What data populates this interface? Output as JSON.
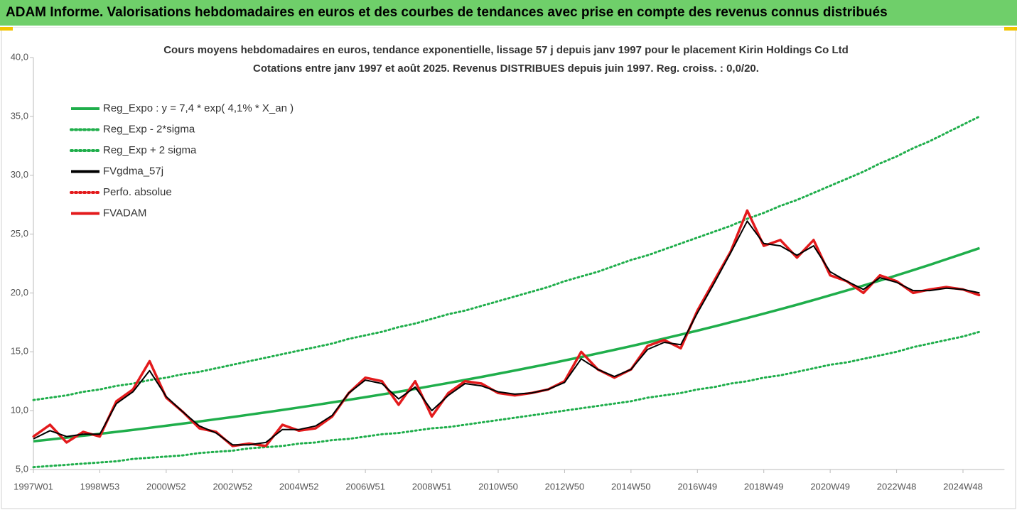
{
  "header": {
    "title": "ADAM Informe. Valorisations hebdomadaires en euros et des courbes de tendances avec prise en compte des revenus connus distribués"
  },
  "chart_data": {
    "type": "line",
    "title": "Cours moyens hebdomadaires en euros, tendance exponentielle, lissage 57 j depuis janv 1997  pour le placement Kirin Holdings Co Ltd",
    "subtitle": "Cotations entre janv 1997 et août 2025. Revenus DISTRIBUES depuis juin 1997. Reg. croiss. : 0,0/20.",
    "categories": [
      "1997W01",
      null,
      null,
      null,
      "1998W53",
      null,
      null,
      null,
      "2000W52",
      null,
      null,
      null,
      "2002W52",
      null,
      null,
      null,
      "2004W52",
      null,
      null,
      null,
      "2006W51",
      null,
      null,
      null,
      "2008W51",
      null,
      null,
      null,
      "2010W50",
      null,
      null,
      null,
      "2012W50",
      null,
      null,
      null,
      "2014W50",
      null,
      null,
      null,
      "2016W49",
      null,
      null,
      null,
      "2018W49",
      null,
      null,
      null,
      "2020W49",
      null,
      null,
      null,
      "2022W48",
      null,
      null,
      null,
      "2024W48",
      null
    ],
    "ylim": [
      5,
      40
    ],
    "yticks": [
      {
        "value": 5,
        "label": "5,0"
      },
      {
        "value": 10,
        "label": "10,0"
      },
      {
        "value": 15,
        "label": "15,0"
      },
      {
        "value": 20,
        "label": "20,0"
      },
      {
        "value": 25,
        "label": "25,0"
      },
      {
        "value": 30,
        "label": "30,0"
      },
      {
        "value": 35,
        "label": "35,0"
      },
      {
        "value": 40,
        "label": "40,0"
      }
    ],
    "grid": false,
    "legend": "top-left",
    "series": [
      {
        "name": "Reg_Expo : y = 7,4 * exp( 4,1% *  X_an )",
        "color": "#1fae4b",
        "style": "solid",
        "values": [
          7.4,
          7.55,
          7.71,
          7.87,
          8.03,
          8.2,
          8.37,
          8.54,
          8.72,
          8.9,
          9.08,
          9.27,
          9.46,
          9.66,
          9.86,
          10.06,
          10.27,
          10.48,
          10.7,
          10.92,
          11.15,
          11.38,
          11.61,
          11.85,
          12.1,
          12.35,
          12.61,
          12.87,
          13.14,
          13.41,
          13.69,
          13.97,
          14.26,
          14.56,
          14.86,
          15.17,
          15.48,
          15.8,
          16.13,
          16.46,
          16.8,
          17.15,
          17.51,
          17.87,
          18.24,
          18.62,
          19.0,
          19.4,
          19.8,
          20.21,
          20.63,
          21.06,
          21.49,
          21.94,
          22.39,
          22.86,
          23.33,
          23.81
        ]
      },
      {
        "name": "Reg_Exp - 2*sigma",
        "color": "#1fae4b",
        "style": "dotted",
        "values": [
          5.2,
          5.3,
          5.4,
          5.5,
          5.6,
          5.7,
          5.9,
          6.0,
          6.1,
          6.2,
          6.4,
          6.5,
          6.6,
          6.8,
          6.9,
          7.0,
          7.2,
          7.3,
          7.5,
          7.6,
          7.8,
          8.0,
          8.1,
          8.3,
          8.5,
          8.6,
          8.8,
          9.0,
          9.2,
          9.4,
          9.6,
          9.8,
          10.0,
          10.2,
          10.4,
          10.6,
          10.8,
          11.1,
          11.3,
          11.5,
          11.8,
          12.0,
          12.3,
          12.5,
          12.8,
          13.0,
          13.3,
          13.6,
          13.9,
          14.1,
          14.4,
          14.7,
          15.0,
          15.4,
          15.7,
          16.0,
          16.3,
          16.7
        ]
      },
      {
        "name": "Reg_Exp + 2 sigma",
        "color": "#1fae4b",
        "style": "dotted",
        "values": [
          10.9,
          11.1,
          11.3,
          11.6,
          11.8,
          12.1,
          12.3,
          12.6,
          12.8,
          13.1,
          13.3,
          13.6,
          13.9,
          14.2,
          14.5,
          14.8,
          15.1,
          15.4,
          15.7,
          16.1,
          16.4,
          16.7,
          17.1,
          17.4,
          17.8,
          18.2,
          18.5,
          18.9,
          19.3,
          19.7,
          20.1,
          20.5,
          21.0,
          21.4,
          21.8,
          22.3,
          22.8,
          23.2,
          23.7,
          24.2,
          24.7,
          25.2,
          25.7,
          26.3,
          26.8,
          27.4,
          27.9,
          28.5,
          29.1,
          29.7,
          30.3,
          31.0,
          31.6,
          32.3,
          32.9,
          33.6,
          34.3,
          35.0
        ]
      },
      {
        "name": "FVgdma_57j",
        "color": "#000000",
        "style": "solid",
        "values": [
          7.6,
          8.3,
          7.8,
          8.0,
          8.0,
          10.6,
          11.6,
          13.4,
          11.2,
          9.9,
          8.7,
          8.1,
          7.1,
          7.1,
          7.3,
          8.4,
          8.4,
          8.7,
          9.6,
          11.5,
          12.6,
          12.3,
          11.0,
          12.0,
          10.0,
          11.3,
          12.3,
          12.1,
          11.6,
          11.4,
          11.5,
          11.8,
          12.4,
          14.4,
          13.5,
          12.9,
          13.5,
          15.2,
          15.8,
          15.6,
          18.3,
          20.8,
          23.4,
          26.1,
          24.2,
          24.0,
          23.2,
          24.0,
          21.8,
          21.0,
          20.3,
          21.3,
          20.9,
          20.2,
          20.2,
          20.4,
          20.3,
          20.0
        ]
      },
      {
        "name": "Perfo. absolue",
        "color": "#e31a1c",
        "style": "dotted",
        "values": [
          7.8,
          8.8,
          7.3,
          8.2,
          7.8,
          10.8,
          11.8,
          14.2,
          11.1,
          9.9,
          8.5,
          8.2,
          7.0,
          7.2,
          7.0,
          8.8,
          8.3,
          8.5,
          9.5,
          11.5,
          12.8,
          12.5,
          10.5,
          12.5,
          9.5,
          11.5,
          12.5,
          12.3,
          11.5,
          11.3,
          11.5,
          11.8,
          12.5,
          15.0,
          13.5,
          12.8,
          13.5,
          15.5,
          16.0,
          15.3,
          18.5,
          21.0,
          23.5,
          27.0,
          24.0,
          24.5,
          23.0,
          24.5,
          21.5,
          21.0,
          20.0,
          21.5,
          21.0,
          20.0,
          20.3,
          20.5,
          20.3,
          19.8
        ]
      },
      {
        "name": "FVADAM",
        "color": "#e31a1c",
        "style": "solid",
        "values": [
          7.8,
          8.8,
          7.3,
          8.2,
          7.8,
          10.8,
          11.8,
          14.2,
          11.1,
          9.9,
          8.5,
          8.2,
          7.0,
          7.2,
          7.0,
          8.8,
          8.3,
          8.5,
          9.5,
          11.5,
          12.8,
          12.5,
          10.5,
          12.5,
          9.5,
          11.5,
          12.5,
          12.3,
          11.5,
          11.3,
          11.5,
          11.8,
          12.5,
          15.0,
          13.5,
          12.8,
          13.5,
          15.5,
          16.0,
          15.3,
          18.5,
          21.0,
          23.5,
          27.0,
          24.0,
          24.5,
          23.0,
          24.5,
          21.5,
          21.0,
          20.0,
          21.5,
          21.0,
          20.0,
          20.3,
          20.5,
          20.3,
          19.8
        ]
      }
    ]
  }
}
